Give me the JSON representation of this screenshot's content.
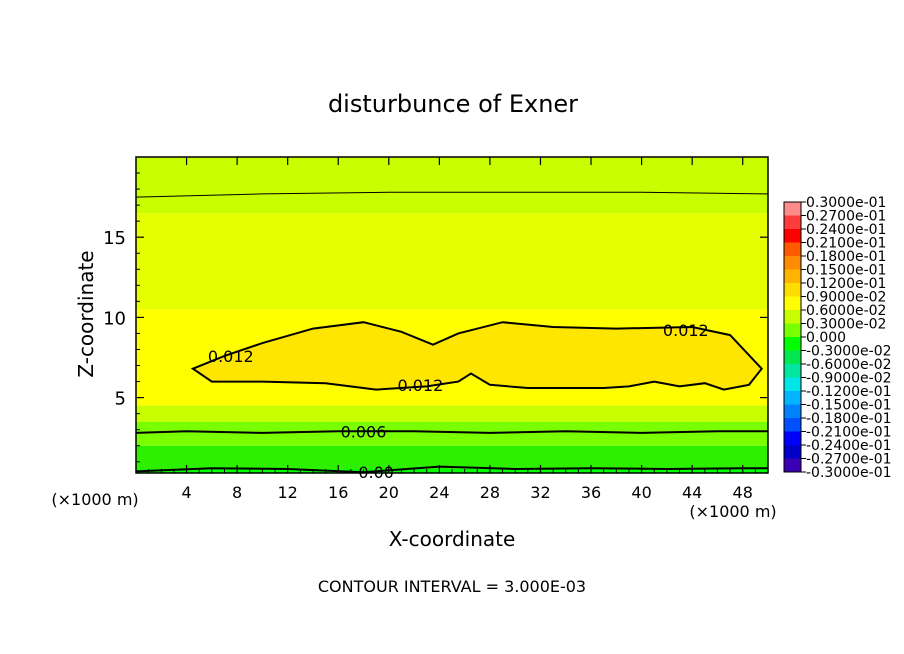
{
  "chart_data": {
    "type": "heatmap",
    "title": "disturbunce of Exner",
    "xlabel": "X-coordinate",
    "ylabel": "Z-coordinate",
    "x_unit": "(×1000 m)",
    "x_unit_right": "(×1000 m)",
    "xlim": [
      0,
      50
    ],
    "ylim": [
      0.3,
      20
    ],
    "x_ticks": [
      4,
      8,
      12,
      16,
      20,
      24,
      28,
      32,
      36,
      40,
      44,
      48
    ],
    "x_tick_labels": [
      "4",
      "8",
      "12",
      "16",
      "20",
      "24",
      "28",
      "32",
      "36",
      "40",
      "44",
      "48"
    ],
    "y_ticks": [
      5,
      10,
      15
    ],
    "y_tick_labels": [
      "5",
      "10",
      "15"
    ],
    "footer": "CONTOUR INTERVAL = 3.000E-03",
    "contour_interval": 0.003,
    "contour_lines": [
      {
        "level": 0.0,
        "label": "0.00",
        "label_x": 19,
        "z": [
          [
            0,
            0.4
          ],
          [
            6,
            0.6
          ],
          [
            12,
            0.55
          ],
          [
            18,
            0.35
          ],
          [
            24,
            0.7
          ],
          [
            30,
            0.55
          ],
          [
            36,
            0.6
          ],
          [
            42,
            0.55
          ],
          [
            48,
            0.6
          ],
          [
            50,
            0.6
          ]
        ]
      },
      {
        "level": 0.006,
        "label": "0.006",
        "label_x": 18,
        "z": [
          [
            0,
            2.8
          ],
          [
            4,
            2.9
          ],
          [
            10,
            2.8
          ],
          [
            16,
            2.9
          ],
          [
            22,
            2.9
          ],
          [
            28,
            2.8
          ],
          [
            34,
            2.9
          ],
          [
            40,
            2.8
          ],
          [
            46,
            2.9
          ],
          [
            50,
            2.9
          ]
        ]
      },
      {
        "level": 0.015,
        "label": "",
        "z": [
          [
            0,
            17.5
          ],
          [
            10,
            17.7
          ],
          [
            20,
            17.8
          ],
          [
            30,
            17.8
          ],
          [
            40,
            17.8
          ],
          [
            50,
            17.7
          ]
        ]
      }
    ],
    "contour_012": {
      "level": 0.012,
      "label": "0.012",
      "label_positions": [
        [
          7.5,
          7.6
        ],
        [
          22.5,
          5.8
        ],
        [
          43.5,
          9.2
        ]
      ],
      "outline": [
        [
          4.5,
          6.8
        ],
        [
          7,
          7.6
        ],
        [
          10,
          8.4
        ],
        [
          14,
          9.3
        ],
        [
          18,
          9.7
        ],
        [
          21,
          9.1
        ],
        [
          23.5,
          8.3
        ],
        [
          25.5,
          9.0
        ],
        [
          29,
          9.7
        ],
        [
          33,
          9.4
        ],
        [
          38,
          9.3
        ],
        [
          44,
          9.4
        ],
        [
          47,
          8.9
        ],
        [
          49.5,
          6.8
        ],
        [
          48.5,
          5.8
        ],
        [
          46.5,
          5.5
        ],
        [
          45,
          5.9
        ],
        [
          43,
          5.7
        ],
        [
          41,
          6.0
        ],
        [
          39,
          5.7
        ],
        [
          37,
          5.6
        ],
        [
          34,
          5.6
        ],
        [
          31,
          5.6
        ],
        [
          28,
          5.8
        ],
        [
          26.5,
          6.5
        ],
        [
          25.5,
          6.0
        ],
        [
          23,
          5.7
        ],
        [
          19,
          5.5
        ],
        [
          15,
          5.9
        ],
        [
          10,
          6.0
        ],
        [
          6,
          6.0
        ],
        [
          4.5,
          6.8
        ]
      ]
    },
    "colorbar": {
      "levels": [
        "0.3000e-01",
        "0.2700e-01",
        "0.2400e-01",
        "0.2100e-01",
        "0.1800e-01",
        "0.1500e-01",
        "0.1200e-01",
        "0.9000e-02",
        "0.6000e-02",
        "0.3000e-02",
        "0.000",
        "-0.3000e-02",
        "-0.6000e-02",
        "-0.9000e-02",
        "-0.1200e-01",
        "-0.1500e-01",
        "-0.1800e-01",
        "-0.2100e-01",
        "-0.2400e-01",
        "-0.2700e-01",
        "-0.3000e-01"
      ],
      "colors": [
        "#ff8c8c",
        "#ff3c3c",
        "#ff0000",
        "#ff5a00",
        "#ff8c00",
        "#ffb400",
        "#ffdc00",
        "#ffff00",
        "#c8ff00",
        "#78ff00",
        "#00ff00",
        "#00e650",
        "#00e6a0",
        "#00e6e6",
        "#00b4ff",
        "#0082ff",
        "#0050ff",
        "#0000ff",
        "#0000c8",
        "#3c00b4"
      ]
    },
    "background_bands": [
      {
        "from": 0.3,
        "to": 0.55,
        "color": "#00ff00"
      },
      {
        "from": 0.55,
        "to": 2.0,
        "color": "#2df000"
      },
      {
        "from": 2.0,
        "to": 3.5,
        "color": "#7aff00"
      },
      {
        "from": 3.5,
        "to": 4.5,
        "color": "#c8ff00"
      },
      {
        "from": 4.5,
        "to": 10.5,
        "color": "#ffff00"
      },
      {
        "from": 10.5,
        "to": 16.5,
        "color": "#e6ff00"
      },
      {
        "from": 16.5,
        "to": 20,
        "color": "#c8ff00"
      }
    ],
    "core_color": "#ffe600"
  }
}
